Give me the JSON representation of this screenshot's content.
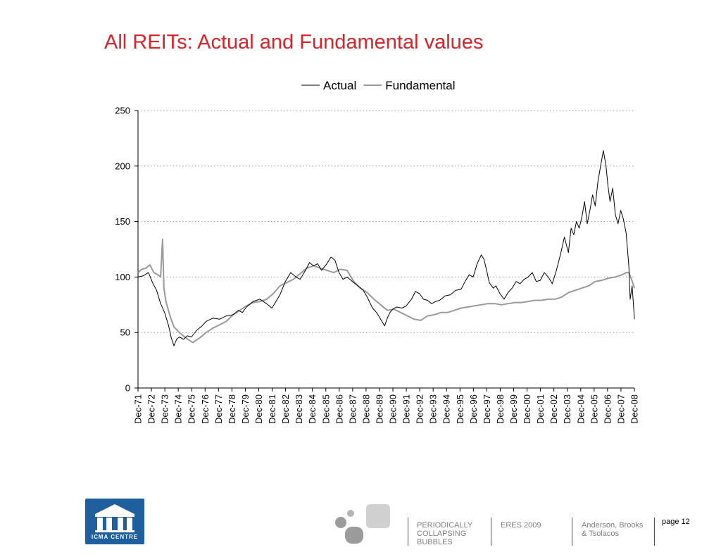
{
  "title": "All REITs: Actual and Fundamental values",
  "footer": {
    "logo_text": "ICMA CENTRE",
    "col1": [
      "PERIODICALLY",
      "COLLAPSING",
      "BUBBLES"
    ],
    "col2": "ERES 2009",
    "col3": [
      "Anderson, Brooks",
      "& Tsolacos"
    ],
    "page": "page 12"
  },
  "colors": {
    "title": "#d9252a",
    "actual": "#000000",
    "fundamental": "#999999",
    "grid": "#999999"
  },
  "chart_data": {
    "type": "line",
    "title": "All REITs: Actual and Fundamental values",
    "xlabel": "",
    "ylabel": "",
    "ylim": [
      0,
      250
    ],
    "yticks": [
      0,
      50,
      100,
      150,
      200,
      250
    ],
    "xlim": [
      1971.917,
      2008.917
    ],
    "categories": [
      "Dec-71",
      "Dec-72",
      "Dec-73",
      "Dec-74",
      "Dec-75",
      "Dec-76",
      "Dec-77",
      "Dec-78",
      "Dec-79",
      "Dec-80",
      "Dec-81",
      "Dec-82",
      "Dec-83",
      "Dec-84",
      "Dec-85",
      "Dec-86",
      "Dec-87",
      "Dec-88",
      "Dec-89",
      "Dec-90",
      "Dec-91",
      "Dec-92",
      "Dec-93",
      "Dec-94",
      "Dec-95",
      "Dec-96",
      "Dec-97",
      "Dec-98",
      "Dec-99",
      "Dec-00",
      "Dec-01",
      "Dec-02",
      "Dec-03",
      "Dec-04",
      "Dec-05",
      "Dec-06",
      "Dec-07",
      "Dec-08"
    ],
    "grid": "horizontal dotted",
    "legend_position": "top",
    "series": [
      {
        "name": "Actual",
        "x": [
          1971.92,
          1972.3,
          1972.7,
          1973.0,
          1973.3,
          1973.6,
          1973.9,
          1974.2,
          1974.4,
          1974.6,
          1974.8,
          1975.0,
          1975.3,
          1975.6,
          1975.9,
          1976.3,
          1976.7,
          1977.0,
          1977.5,
          1978.0,
          1978.5,
          1979.0,
          1979.4,
          1979.7,
          1980.0,
          1980.5,
          1981.0,
          1981.5,
          1981.9,
          1982.2,
          1982.5,
          1982.9,
          1983.3,
          1983.7,
          1984.0,
          1984.4,
          1984.7,
          1985.0,
          1985.3,
          1985.6,
          1986.0,
          1986.3,
          1986.6,
          1986.9,
          1987.2,
          1987.5,
          1987.9,
          1988.3,
          1988.7,
          1989.0,
          1989.4,
          1989.7,
          1990.0,
          1990.3,
          1990.5,
          1990.7,
          1990.9,
          1991.2,
          1991.6,
          1991.9,
          1992.3,
          1992.6,
          1992.9,
          1993.2,
          1993.5,
          1993.8,
          1994.1,
          1994.4,
          1994.8,
          1995.2,
          1995.6,
          1996.0,
          1996.3,
          1996.6,
          1996.9,
          1997.2,
          1997.5,
          1997.7,
          1997.9,
          1998.1,
          1998.4,
          1998.6,
          1998.9,
          1999.2,
          1999.5,
          1999.8,
          2000.1,
          2000.4,
          2000.7,
          2001.0,
          2001.3,
          2001.6,
          2001.9,
          2002.2,
          2002.5,
          2002.8,
          2003.1,
          2003.4,
          2003.7,
          2004.0,
          2004.2,
          2004.4,
          2004.6,
          2004.8,
          2005.0,
          2005.2,
          2005.4,
          2005.6,
          2005.8,
          2006.0,
          2006.2,
          2006.4,
          2006.6,
          2006.8,
          2006.95,
          2007.1,
          2007.3,
          2007.5,
          2007.7,
          2007.9,
          2008.1,
          2008.3,
          2008.5,
          2008.6,
          2008.75,
          2008.92
        ],
        "y": [
          100,
          101,
          104,
          95,
          88,
          76,
          68,
          56,
          45,
          38,
          44,
          46,
          44,
          47,
          46,
          52,
          56,
          60,
          63,
          62,
          65,
          66,
          70,
          68,
          73,
          78,
          80,
          76,
          72,
          78,
          84,
          96,
          104,
          100,
          98,
          106,
          113,
          110,
          112,
          106,
          112,
          118,
          115,
          104,
          98,
          100,
          96,
          92,
          88,
          82,
          72,
          68,
          62,
          56,
          63,
          68,
          71,
          73,
          72,
          74,
          80,
          87,
          85,
          80,
          79,
          76,
          78,
          79,
          83,
          84,
          88,
          89,
          96,
          102,
          100,
          112,
          120,
          116,
          106,
          95,
          90,
          92,
          85,
          80,
          86,
          90,
          96,
          94,
          98,
          100,
          104,
          96,
          97,
          104,
          100,
          94,
          106,
          120,
          136,
          122,
          144,
          138,
          150,
          144,
          154,
          168,
          148,
          160,
          174,
          164,
          186,
          200,
          214,
          200,
          182,
          168,
          180,
          156,
          148,
          160,
          152,
          140,
          110,
          80,
          92,
          62
        ]
      },
      {
        "name": "Fundamental",
        "x": [
          1971.92,
          1972.2,
          1972.5,
          1972.8,
          1973.1,
          1973.4,
          1973.6,
          1973.75,
          1973.85,
          1974.0,
          1974.3,
          1974.6,
          1975.0,
          1975.5,
          1976.0,
          1976.5,
          1977.0,
          1977.5,
          1978.0,
          1978.5,
          1979.0,
          1979.5,
          1980.0,
          1980.5,
          1981.0,
          1981.5,
          1982.0,
          1982.5,
          1983.0,
          1983.5,
          1984.0,
          1984.5,
          1985.0,
          1985.5,
          1986.0,
          1986.5,
          1987.0,
          1987.5,
          1988.0,
          1988.5,
          1989.0,
          1989.5,
          1990.0,
          1990.5,
          1991.0,
          1991.5,
          1992.0,
          1992.5,
          1993.0,
          1993.5,
          1994.0,
          1994.5,
          1995.0,
          1995.5,
          1996.0,
          1996.5,
          1997.0,
          1997.5,
          1998.0,
          1998.5,
          1999.0,
          1999.5,
          2000.0,
          2000.5,
          2001.0,
          2001.5,
          2002.0,
          2002.5,
          2003.0,
          2003.5,
          2004.0,
          2004.5,
          2005.0,
          2005.5,
          2006.0,
          2006.5,
          2007.0,
          2007.5,
          2008.0,
          2008.3,
          2008.5,
          2008.7,
          2008.92
        ],
        "y": [
          104,
          107,
          108,
          111,
          104,
          102,
          100,
          134,
          90,
          78,
          65,
          55,
          50,
          45,
          41,
          45,
          50,
          54,
          57,
          60,
          66,
          70,
          74,
          77,
          78,
          80,
          85,
          92,
          95,
          98,
          103,
          108,
          110,
          108,
          106,
          104,
          107,
          106,
          96,
          90,
          86,
          80,
          75,
          70,
          71,
          68,
          65,
          62,
          61,
          65,
          66,
          68,
          68,
          70,
          72,
          73,
          74,
          75,
          76,
          76,
          75,
          76,
          77,
          77,
          78,
          79,
          79,
          80,
          80,
          82,
          86,
          88,
          90,
          92,
          96,
          97,
          99,
          100,
          102,
          104,
          104,
          98,
          90
        ]
      }
    ]
  }
}
